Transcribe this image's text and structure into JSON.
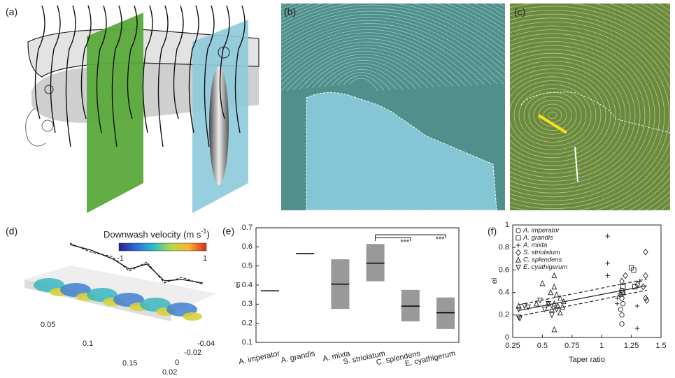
{
  "figure": {
    "panel_labels": [
      "(a)",
      "(b)",
      "(c)",
      "(d)",
      "(e)",
      "(f)"
    ],
    "panel_d": {
      "colorbar_label": "Downwash velocity (m s",
      "colorbar_exponent": "-1",
      "colorbar_label_end": ")",
      "colorbar_ticks": [
        -1,
        1
      ],
      "x_ticks": [
        0.05,
        0.1,
        0.15
      ],
      "y_ticks": [
        -0.04,
        -0.02,
        0,
        0.02
      ]
    }
  },
  "chart_data": [
    {
      "type": "box",
      "y_label": "ei",
      "categories": [
        "A. imperator",
        "A. grandis",
        "A. mixta",
        "S. striolatum",
        "C. splendens",
        "E. cyathigerum"
      ],
      "medians": [
        0.37,
        0.565,
        0.405,
        0.515,
        0.29,
        0.255
      ],
      "q1": [
        null,
        null,
        0.275,
        0.42,
        0.21,
        0.17
      ],
      "q3": [
        null,
        null,
        0.535,
        0.615,
        0.375,
        0.335
      ],
      "box_color": "#999999",
      "ylim": [
        0.1,
        0.7
      ],
      "yticks": [
        0.1,
        0.2,
        0.3,
        0.4,
        0.5,
        0.6,
        0.7
      ],
      "significance": [
        {
          "from": 3,
          "to": 5,
          "label": "***"
        },
        {
          "from": 3,
          "to": 4,
          "label": "***"
        }
      ]
    },
    {
      "type": "scatter",
      "x_label": "Taper ratio",
      "y_label": "ei",
      "legend": "top-left",
      "xlim": [
        0.25,
        1.5
      ],
      "xticks": [
        0.25,
        0.5,
        0.75,
        1,
        1.25,
        1.5
      ],
      "ylim": [
        0,
        1
      ],
      "yticks": [
        0,
        0.2,
        0.4,
        0.6,
        0.8,
        1
      ],
      "series": [
        {
          "name": "A. imperator",
          "marker": "circle",
          "color": "#222222",
          "x": [
            1.17,
            1.17,
            1.16,
            1.18,
            1.17,
            1.16,
            1.18,
            1.17
          ],
          "values": [
            0.12,
            0.2,
            0.25,
            0.3,
            0.35,
            0.38,
            0.4,
            0.42
          ]
        },
        {
          "name": "A. grandis",
          "marker": "square",
          "color": "#222222",
          "x": [
            1.17,
            1.18,
            1.27,
            1.28,
            1.25
          ],
          "values": [
            0.4,
            0.45,
            0.6,
            0.45,
            0.62
          ]
        },
        {
          "name": "A. mixta",
          "marker": "plus",
          "color": "#222222",
          "x": [
            1.05,
            1.05,
            1.05,
            1.13,
            1.13,
            1.3,
            1.3,
            1.32
          ],
          "values": [
            0.9,
            0.66,
            0.55,
            0.35,
            0.3,
            0.28,
            0.08,
            0.5
          ]
        },
        {
          "name": "S. striolatum",
          "marker": "diamond",
          "color": "#222222",
          "x": [
            1.37,
            1.37,
            1.35,
            1.37,
            1.3,
            1.17,
            1.2,
            1.38
          ],
          "values": [
            0.76,
            0.55,
            0.45,
            0.35,
            0.47,
            0.5,
            0.55,
            0.33
          ]
        },
        {
          "name": "C. splendens",
          "marker": "triangle-up",
          "color": "#222222",
          "x": [
            0.6,
            0.6,
            0.57,
            0.62,
            0.65,
            0.6,
            0.63,
            0.58,
            0.65,
            0.6,
            0.55,
            0.67,
            0.68,
            0.5,
            0.45,
            0.3
          ],
          "values": [
            0.55,
            0.45,
            0.4,
            0.38,
            0.35,
            0.3,
            0.28,
            0.25,
            0.22,
            0.07,
            0.3,
            0.27,
            0.32,
            0.48,
            0.3,
            0.28
          ]
        },
        {
          "name": "E. cyathigerum",
          "marker": "triangle-down",
          "color": "#222222",
          "x": [
            0.3,
            0.3,
            0.35,
            0.38,
            0.52,
            0.55,
            0.62,
            0.58,
            0.48,
            0.31
          ],
          "values": [
            0.25,
            0.18,
            0.28,
            0.27,
            0.25,
            0.3,
            0.25,
            0.2,
            0.33,
            0.17
          ]
        }
      ],
      "fit_lines": [
        {
          "style": "solid",
          "x": [
            0.3,
            1.38
          ],
          "values": [
            0.24,
            0.46
          ]
        },
        {
          "style": "dashed",
          "x": [
            0.3,
            1.38
          ],
          "values": [
            0.29,
            0.52
          ]
        },
        {
          "style": "dashed",
          "x": [
            0.3,
            1.38
          ],
          "values": [
            0.19,
            0.42
          ]
        }
      ]
    }
  ]
}
